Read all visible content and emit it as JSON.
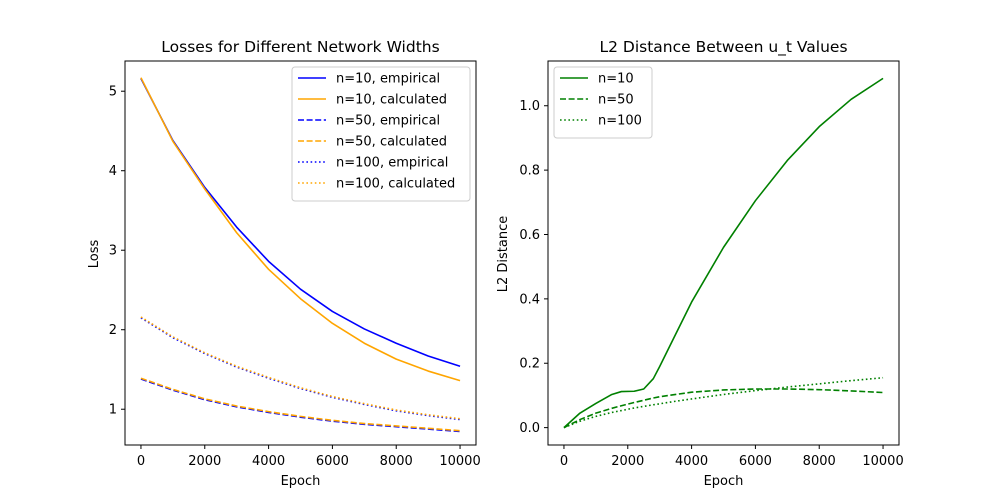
{
  "chart_data": [
    {
      "type": "line",
      "title": "Losses for Different Network Widths",
      "xlabel": "Epoch",
      "ylabel": "Loss",
      "xlim": [
        -500,
        10500
      ],
      "ylim": [
        0.55,
        5.38
      ],
      "xticks": [
        0,
        2000,
        4000,
        6000,
        8000,
        10000
      ],
      "yticks": [
        1,
        2,
        3,
        4,
        5
      ],
      "legend_position": "top-right",
      "grid": false,
      "x": [
        0,
        1000,
        2000,
        3000,
        4000,
        5000,
        6000,
        7000,
        8000,
        9000,
        10000
      ],
      "series": [
        {
          "name": "n=10, empirical",
          "color": "#0000ff",
          "style": "solid",
          "values": [
            5.16,
            4.38,
            3.79,
            3.29,
            2.86,
            2.51,
            2.23,
            2.01,
            1.83,
            1.67,
            1.54
          ]
        },
        {
          "name": "n=10, calculated",
          "color": "#ffa500",
          "style": "solid",
          "values": [
            5.17,
            4.37,
            3.77,
            3.22,
            2.76,
            2.39,
            2.08,
            1.83,
            1.63,
            1.48,
            1.36
          ]
        },
        {
          "name": "n=50, empirical",
          "color": "#0000ff",
          "style": "dashed",
          "values": [
            1.38,
            1.24,
            1.12,
            1.03,
            0.96,
            0.9,
            0.85,
            0.81,
            0.78,
            0.75,
            0.72
          ]
        },
        {
          "name": "n=50, calculated",
          "color": "#ffa500",
          "style": "dashed",
          "values": [
            1.39,
            1.25,
            1.13,
            1.04,
            0.97,
            0.91,
            0.86,
            0.82,
            0.79,
            0.76,
            0.73
          ]
        },
        {
          "name": "n=100, empirical",
          "color": "#0000ff",
          "style": "dotted",
          "values": [
            2.15,
            1.9,
            1.7,
            1.53,
            1.39,
            1.26,
            1.15,
            1.06,
            0.98,
            0.92,
            0.87
          ]
        },
        {
          "name": "n=100, calculated",
          "color": "#ffa500",
          "style": "dotted",
          "values": [
            2.16,
            1.91,
            1.71,
            1.54,
            1.4,
            1.27,
            1.16,
            1.07,
            0.99,
            0.93,
            0.88
          ]
        }
      ]
    },
    {
      "type": "line",
      "title": "L2 Distance Between u_t Values",
      "xlabel": "Epoch",
      "ylabel": "L2 Distance",
      "xlim": [
        -500,
        10500
      ],
      "ylim": [
        -0.054,
        1.139
      ],
      "xticks": [
        0,
        2000,
        4000,
        6000,
        8000,
        10000
      ],
      "yticks": [
        0.0,
        0.2,
        0.4,
        0.6,
        0.8,
        1.0
      ],
      "ytick_labels": [
        "0.0",
        "0.2",
        "0.4",
        "0.6",
        "0.8",
        "1.0"
      ],
      "legend_position": "top-left",
      "grid": false,
      "x": [
        0,
        500,
        1000,
        1500,
        1800,
        2200,
        2500,
        2800,
        3000,
        3500,
        4000,
        5000,
        6000,
        7000,
        8000,
        9000,
        10000
      ],
      "series": [
        {
          "name": "n=10",
          "color": "#008000",
          "style": "solid",
          "values": [
            0.0,
            0.045,
            0.075,
            0.103,
            0.112,
            0.113,
            0.12,
            0.152,
            0.19,
            0.29,
            0.39,
            0.56,
            0.705,
            0.83,
            0.935,
            1.02,
            1.085
          ]
        },
        {
          "name": "n=50",
          "color": "#008000",
          "style": "dashed",
          "values": [
            0.0,
            0.025,
            0.045,
            0.06,
            0.068,
            0.078,
            0.085,
            0.092,
            0.096,
            0.103,
            0.11,
            0.117,
            0.12,
            0.12,
            0.118,
            0.114,
            0.109
          ]
        },
        {
          "name": "n=100",
          "color": "#008000",
          "style": "dotted",
          "values": [
            0.0,
            0.02,
            0.035,
            0.047,
            0.053,
            0.061,
            0.066,
            0.071,
            0.074,
            0.082,
            0.089,
            0.103,
            0.115,
            0.126,
            0.136,
            0.146,
            0.155
          ]
        }
      ]
    }
  ]
}
